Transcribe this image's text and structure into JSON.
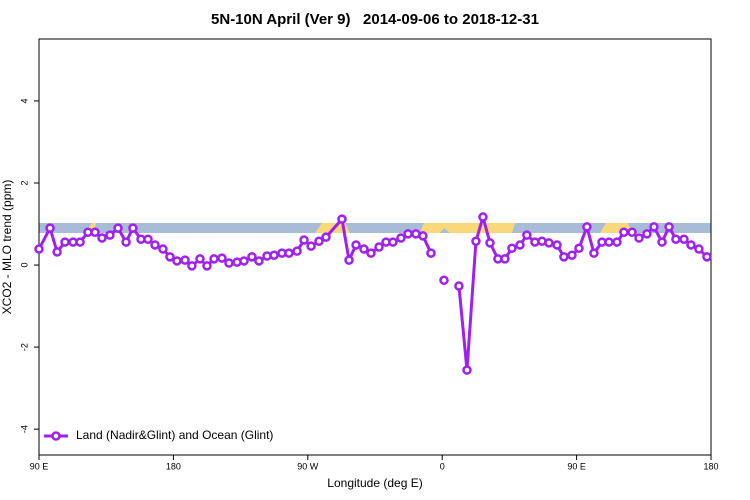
{
  "chart_data": {
    "type": "line",
    "title": "5N-10N April (Ver 9)   2014-09-06 to 2018-12-31",
    "x_label": "Longitude (deg E)",
    "y_label": "XCO2 - MLO trend (ppm)",
    "xlim": [
      90,
      540
    ],
    "ylim": [
      -4.63,
      5.51
    ],
    "xticks": [
      {
        "value": 90,
        "label": "90 E"
      },
      {
        "value": 180,
        "label": "180"
      },
      {
        "value": 270,
        "label": "90 W"
      },
      {
        "value": 360,
        "label": "0"
      },
      {
        "value": 450,
        "label": "90 E"
      },
      {
        "value": 540,
        "label": "180"
      }
    ],
    "yticks": [
      4,
      2,
      0,
      -2,
      -4
    ],
    "legend": "bottom-left",
    "x": [
      90,
      97.4,
      102.1,
      107.4,
      112.8,
      117.5,
      122.8,
      127.5,
      132.2,
      137.5,
      142.9,
      148.3,
      152.9,
      158.3,
      163,
      167.7,
      173,
      177.7,
      182.4,
      187.8,
      192.4,
      197.8,
      202.5,
      207.2,
      212.5,
      217.2,
      222.6,
      227.3,
      232.6,
      237.3,
      242.7,
      247.4,
      252.7,
      257.4,
      262.8,
      267.5,
      272.2,
      277.5,
      282.2,
      292.9,
      297.6,
      302.3,
      307.6,
      312.3,
      317.7,
      322.4,
      327,
      332.4,
      337.1,
      342.4,
      347.1,
      352.5,
      357,
      361.2,
      366,
      371.2,
      376.6,
      382.6,
      387.3,
      392,
      397.3,
      402,
      406.7,
      412.1,
      416.7,
      422.1,
      426.8,
      431.5,
      436.9,
      441.5,
      446.9,
      451.6,
      456.9,
      461.6,
      467,
      471.7,
      477,
      481.7,
      487.1,
      491.8,
      497.1,
      501.8,
      507.2,
      511.9,
      516.5,
      521.9,
      526.6,
      531.9,
      537.3
    ],
    "series": [
      {
        "name": "Land (Nadir&Glint) and Ocean (Glint)",
        "color": "#a020f0",
        "values": [
          0.39,
          0.9,
          0.32,
          0.56,
          0.56,
          0.56,
          0.8,
          0.8,
          0.66,
          0.73,
          0.9,
          0.56,
          0.9,
          0.63,
          0.63,
          0.49,
          0.39,
          0.2,
          0.1,
          0.12,
          -0.02,
          0.15,
          -0.02,
          0.15,
          0.17,
          0.05,
          0.07,
          0.1,
          0.2,
          0.1,
          0.22,
          0.24,
          0.29,
          0.29,
          0.34,
          0.61,
          0.46,
          0.58,
          0.68,
          1.12,
          0.12,
          0.49,
          0.39,
          0.29,
          0.44,
          0.56,
          0.56,
          0.66,
          0.76,
          0.76,
          0.71,
          0.29,
          null,
          -0.37,
          null,
          -0.51,
          -2.56,
          0.58,
          1.17,
          0.54,
          0.15,
          0.15,
          0.41,
          0.49,
          0.73,
          0.56,
          0.58,
          0.54,
          0.49,
          0.2,
          0.24,
          0.41,
          0.93,
          0.29,
          0.56,
          0.56,
          0.56,
          0.8,
          0.8,
          0.66,
          0.76,
          0.93,
          0.56,
          0.93,
          0.63,
          0.63,
          0.49,
          0.39,
          0.2
        ]
      }
    ]
  }
}
